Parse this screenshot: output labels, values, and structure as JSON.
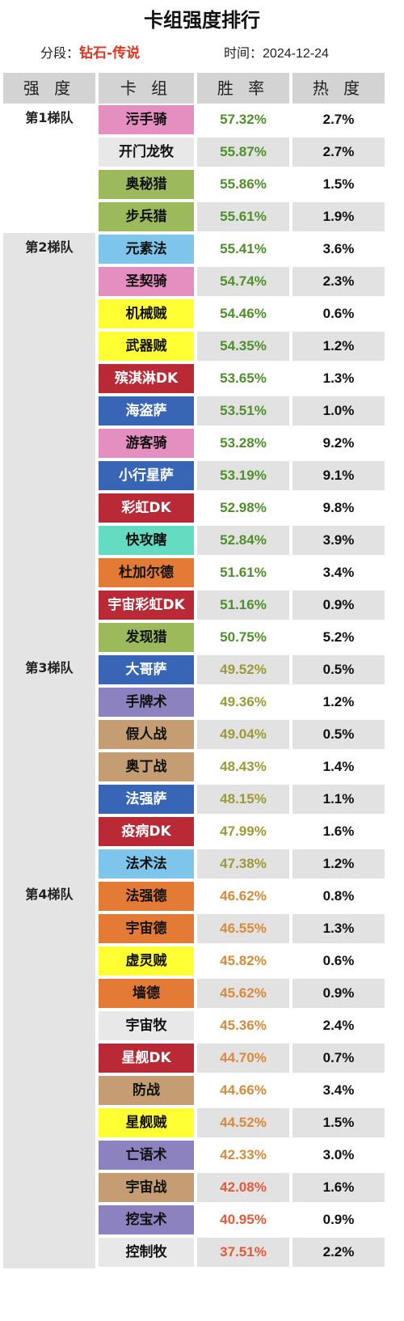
{
  "title": "卡组强度排行",
  "meta": {
    "rank_label": "分段：",
    "rank_value": "钻石-传说",
    "date_label": "时间：",
    "date_value": "2024-12-24"
  },
  "headers": [
    "强 度",
    "卡 组",
    "胜 率",
    "热 度"
  ],
  "colors": {
    "pink": "#e48fc0",
    "light_gray": "#e8e8e8",
    "olive": "#9cba5c",
    "sky": "#7dc5ea",
    "yellow": "#ffff33",
    "crimson": "#b92a36",
    "blue": "#3865b6",
    "mint": "#63dcc2",
    "orange": "#e37a35",
    "purple": "#8d82c0",
    "tan": "#c49e72",
    "rate_green": "#4f8f2a",
    "rate_olive": "#9c9a36",
    "rate_orange": "#d88a3a",
    "rate_red": "#e25a3a"
  },
  "tiers": [
    {
      "label": "第1梯队",
      "decks": [
        {
          "name": "污手骑",
          "color": "pink",
          "rate": "57.32%",
          "rate_color": "rate_green",
          "heat": "2.7%"
        },
        {
          "name": "开门龙牧",
          "color": "light_gray",
          "rate": "55.87%",
          "rate_color": "rate_green",
          "heat": "2.7%"
        },
        {
          "name": "奥秘猎",
          "color": "olive",
          "rate": "55.86%",
          "rate_color": "rate_green",
          "heat": "1.5%"
        },
        {
          "name": "步兵猎",
          "color": "olive",
          "rate": "55.61%",
          "rate_color": "rate_green",
          "heat": "1.9%"
        }
      ]
    },
    {
      "label": "第2梯队",
      "decks": [
        {
          "name": "元素法",
          "color": "sky",
          "rate": "55.41%",
          "rate_color": "rate_green",
          "heat": "3.6%"
        },
        {
          "name": "圣契骑",
          "color": "pink",
          "rate": "54.74%",
          "rate_color": "rate_green",
          "heat": "2.3%"
        },
        {
          "name": "机械贼",
          "color": "yellow",
          "rate": "54.46%",
          "rate_color": "rate_green",
          "heat": "0.6%"
        },
        {
          "name": "武器贼",
          "color": "yellow",
          "rate": "54.35%",
          "rate_color": "rate_green",
          "heat": "1.2%"
        },
        {
          "name": "殡淇淋DK",
          "color": "crimson",
          "rate": "53.65%",
          "rate_color": "rate_green",
          "heat": "1.3%"
        },
        {
          "name": "海盗萨",
          "color": "blue",
          "rate": "53.51%",
          "rate_color": "rate_green",
          "heat": "1.0%"
        },
        {
          "name": "游客骑",
          "color": "pink",
          "rate": "53.28%",
          "rate_color": "rate_green",
          "heat": "9.2%"
        },
        {
          "name": "小行星萨",
          "color": "blue",
          "rate": "53.19%",
          "rate_color": "rate_green",
          "heat": "9.1%"
        },
        {
          "name": "彩虹DK",
          "color": "crimson",
          "rate": "52.98%",
          "rate_color": "rate_green",
          "heat": "9.8%"
        },
        {
          "name": "快攻瞎",
          "color": "mint",
          "rate": "52.84%",
          "rate_color": "rate_green",
          "heat": "3.9%"
        },
        {
          "name": "杜加尔德",
          "color": "orange",
          "rate": "51.61%",
          "rate_color": "rate_green",
          "heat": "3.4%"
        },
        {
          "name": "宇宙彩虹DK",
          "color": "crimson",
          "rate": "51.16%",
          "rate_color": "rate_green",
          "heat": "0.9%"
        },
        {
          "name": "发现猎",
          "color": "olive",
          "rate": "50.75%",
          "rate_color": "rate_green",
          "heat": "5.2%"
        }
      ]
    },
    {
      "label": "第3梯队",
      "decks": [
        {
          "name": "大哥萨",
          "color": "blue",
          "rate": "49.52%",
          "rate_color": "rate_olive",
          "heat": "0.5%"
        },
        {
          "name": "手牌术",
          "color": "purple",
          "rate": "49.36%",
          "rate_color": "rate_olive",
          "heat": "1.2%"
        },
        {
          "name": "假人战",
          "color": "tan",
          "rate": "49.04%",
          "rate_color": "rate_olive",
          "heat": "0.5%"
        },
        {
          "name": "奥丁战",
          "color": "tan",
          "rate": "48.43%",
          "rate_color": "rate_olive",
          "heat": "1.4%"
        },
        {
          "name": "法强萨",
          "color": "blue",
          "rate": "48.15%",
          "rate_color": "rate_olive",
          "heat": "1.1%"
        },
        {
          "name": "疫病DK",
          "color": "crimson",
          "rate": "47.99%",
          "rate_color": "rate_olive",
          "heat": "1.6%"
        },
        {
          "name": "法术法",
          "color": "sky",
          "rate": "47.38%",
          "rate_color": "rate_olive",
          "heat": "1.2%"
        }
      ]
    },
    {
      "label": "第4梯队",
      "decks": [
        {
          "name": "法强德",
          "color": "orange",
          "rate": "46.62%",
          "rate_color": "rate_orange",
          "heat": "0.8%"
        },
        {
          "name": "宇宙德",
          "color": "orange",
          "rate": "46.55%",
          "rate_color": "rate_orange",
          "heat": "1.3%"
        },
        {
          "name": "虚灵贼",
          "color": "yellow",
          "rate": "45.82%",
          "rate_color": "rate_orange",
          "heat": "0.6%"
        },
        {
          "name": "墙德",
          "color": "orange",
          "rate": "45.62%",
          "rate_color": "rate_orange",
          "heat": "0.9%"
        },
        {
          "name": "宇宙牧",
          "color": "light_gray",
          "rate": "45.36%",
          "rate_color": "rate_orange",
          "heat": "2.4%"
        },
        {
          "name": "星舰DK",
          "color": "crimson",
          "rate": "44.70%",
          "rate_color": "rate_orange",
          "heat": "0.7%"
        },
        {
          "name": "防战",
          "color": "tan",
          "rate": "44.66%",
          "rate_color": "rate_orange",
          "heat": "3.4%"
        },
        {
          "name": "星舰贼",
          "color": "yellow",
          "rate": "44.52%",
          "rate_color": "rate_orange",
          "heat": "1.5%"
        },
        {
          "name": "亡语术",
          "color": "purple",
          "rate": "42.33%",
          "rate_color": "rate_orange",
          "heat": "3.0%"
        },
        {
          "name": "宇宙战",
          "color": "tan",
          "rate": "42.08%",
          "rate_color": "rate_red",
          "heat": "1.6%"
        },
        {
          "name": "挖宝术",
          "color": "purple",
          "rate": "40.95%",
          "rate_color": "rate_red",
          "heat": "0.9%"
        },
        {
          "name": "控制牧",
          "color": "light_gray",
          "rate": "37.51%",
          "rate_color": "rate_red",
          "heat": "2.2%"
        }
      ]
    }
  ]
}
